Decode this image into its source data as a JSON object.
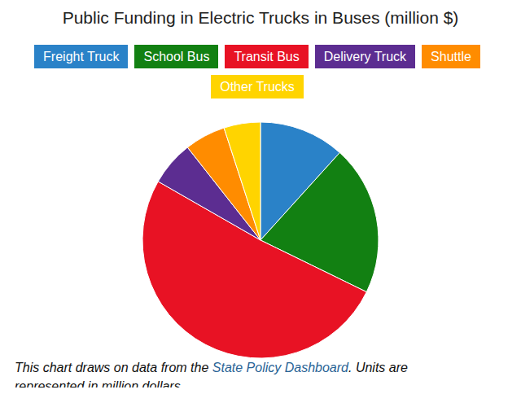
{
  "chart_data": {
    "type": "pie",
    "title": "Public Funding in Electric Trucks in Buses (million $)",
    "categories": [
      "Freight Truck",
      "School Bus",
      "Transit Bus",
      "Delivery Truck",
      "Shuttle",
      "Other Trucks"
    ],
    "values": [
      11.7,
      20.5,
      51.0,
      6.1,
      5.6,
      5.0
    ],
    "colors": [
      "#2a82c8",
      "#128012",
      "#e81224",
      "#5c2d91",
      "#ff8c00",
      "#ffd400"
    ],
    "legend": "top",
    "note": {
      "before": "This chart draws on data from the",
      "link": "State Policy Dashboard",
      "after": ". Units are represented in million dollars."
    }
  }
}
